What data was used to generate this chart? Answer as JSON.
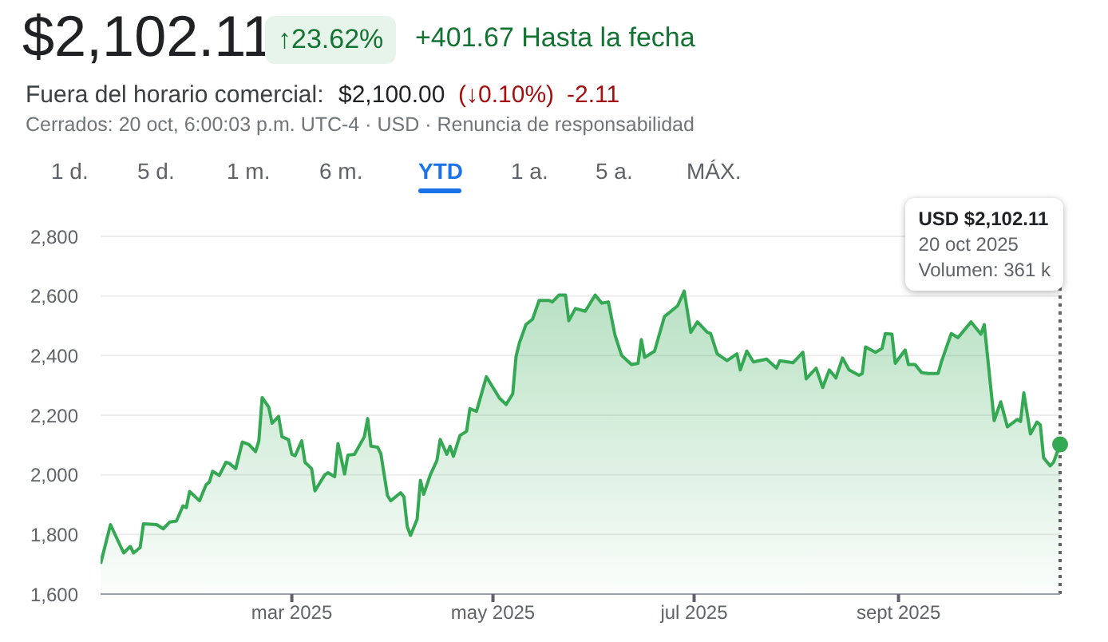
{
  "chart_data": {
    "type": "area",
    "title": "$2,102.11",
    "annotations": [
      "↑23.62%",
      "+401.67 Hasta la fecha",
      "Fuera del horario comercial:",
      "$2,100.00",
      "(↓0.10%)",
      "-2.11",
      "Cerrados: 20 oct, 6:00:03 p.m. UTC-4 · USD · Renuncia de responsabilidad",
      "1 d.",
      "5 d.",
      "1 m.",
      "6 m.",
      "YTD",
      "1 a.",
      "5 a.",
      "MÁX.",
      "USD $2,102.11\n20 oct 2025\nVolumen: 361 k"
    ],
    "x": [
      "2025-01-02",
      "2025-01-05",
      "2025-01-09",
      "2025-01-11",
      "2025-01-12",
      "2025-01-14",
      "2025-01-15",
      "2025-01-19",
      "2025-01-21",
      "2025-01-23",
      "2025-01-25",
      "2025-01-27",
      "2025-01-28",
      "2025-01-29",
      "2025-02-01",
      "2025-02-03",
      "2025-02-04",
      "2025-02-05",
      "2025-02-07",
      "2025-02-09",
      "2025-02-10",
      "2025-02-12",
      "2025-02-14",
      "2025-02-16",
      "2025-02-18",
      "2025-02-19",
      "2025-02-20",
      "2025-02-22",
      "2025-02-23",
      "2025-02-25",
      "2025-02-26",
      "2025-02-28",
      "2025-03-01",
      "2025-03-02",
      "2025-03-04",
      "2025-03-05",
      "2025-03-07",
      "2025-03-08",
      "2025-03-11",
      "2025-03-12",
      "2025-03-14",
      "2025-03-15",
      "2025-03-17",
      "2025-03-18",
      "2025-03-20",
      "2025-03-23",
      "2025-03-24",
      "2025-03-25",
      "2025-03-27",
      "2025-03-28",
      "2025-03-30",
      "2025-03-31",
      "2025-04-03",
      "2025-04-04",
      "2025-04-05",
      "2025-04-06",
      "2025-04-08",
      "2025-04-09",
      "2025-04-10",
      "2025-04-12",
      "2025-04-14",
      "2025-04-15",
      "2025-04-17",
      "2025-04-18",
      "2025-04-19",
      "2025-04-21",
      "2025-04-23",
      "2025-04-24",
      "2025-04-26",
      "2025-04-29",
      "2025-05-01",
      "2025-05-03",
      "2025-05-05",
      "2025-05-07",
      "2025-05-08",
      "2025-05-09",
      "2025-05-11",
      "2025-05-13",
      "2025-05-15",
      "2025-05-18",
      "2025-05-19",
      "2025-05-21",
      "2025-05-23",
      "2025-05-24",
      "2025-05-26",
      "2025-05-29",
      "2025-06-01",
      "2025-06-03",
      "2025-06-05",
      "2025-06-07",
      "2025-06-09",
      "2025-06-12",
      "2025-06-14",
      "2025-06-15",
      "2025-06-16",
      "2025-06-19",
      "2025-06-22",
      "2025-06-24",
      "2025-06-26",
      "2025-06-28",
      "2025-06-30",
      "2025-07-02",
      "2025-07-05",
      "2025-07-06",
      "2025-07-08",
      "2025-07-11",
      "2025-07-14",
      "2025-07-15",
      "2025-07-17",
      "2025-07-19",
      "2025-07-23",
      "2025-07-26",
      "2025-07-27",
      "2025-07-31",
      "2025-08-03",
      "2025-08-04",
      "2025-08-07",
      "2025-08-09",
      "2025-08-11",
      "2025-08-13",
      "2025-08-15",
      "2025-08-17",
      "2025-08-20",
      "2025-08-21",
      "2025-08-22",
      "2025-08-25",
      "2025-08-27",
      "2025-08-28",
      "2025-08-30",
      "2025-08-31",
      "2025-09-03",
      "2025-09-04",
      "2025-09-06",
      "2025-09-08",
      "2025-09-10",
      "2025-09-13",
      "2025-09-14",
      "2025-09-17",
      "2025-09-19",
      "2025-09-23",
      "2025-09-26",
      "2025-09-27",
      "2025-09-30",
      "2025-10-02",
      "2025-10-04",
      "2025-10-07",
      "2025-10-08",
      "2025-10-09",
      "2025-10-11",
      "2025-10-13",
      "2025-10-14",
      "2025-10-15",
      "2025-10-17",
      "2025-10-18",
      "2025-10-20"
    ],
    "series": [
      {
        "color": "#34a853",
        "values": [
          1702,
          1833,
          1738,
          1760,
          1738,
          1756,
          1836,
          1833,
          1819,
          1842,
          1845,
          1896,
          1890,
          1944,
          1913,
          1967,
          1976,
          2012,
          1998,
          2042,
          2039,
          2021,
          2110,
          2102,
          2078,
          2114,
          2259,
          2227,
          2173,
          2196,
          2128,
          2118,
          2069,
          2064,
          2114,
          2042,
          2021,
          1946,
          2000,
          2007,
          1994,
          2105,
          2003,
          2066,
          2069,
          2128,
          2189,
          2096,
          2093,
          2071,
          1931,
          1913,
          1940,
          1926,
          1827,
          1797,
          1851,
          1982,
          1935,
          2000,
          2048,
          2119,
          2069,
          2096,
          2062,
          2132,
          2146,
          2222,
          2213,
          2329,
          2293,
          2257,
          2236,
          2272,
          2397,
          2442,
          2504,
          2522,
          2585,
          2585,
          2580,
          2603,
          2603,
          2517,
          2558,
          2549,
          2603,
          2576,
          2580,
          2469,
          2401,
          2370,
          2374,
          2454,
          2394,
          2415,
          2531,
          2549,
          2567,
          2616,
          2478,
          2513,
          2478,
          2474,
          2406,
          2383,
          2406,
          2352,
          2415,
          2379,
          2388,
          2358,
          2383,
          2376,
          2411,
          2322,
          2358,
          2293,
          2352,
          2325,
          2392,
          2352,
          2334,
          2340,
          2429,
          2411,
          2424,
          2474,
          2472,
          2374,
          2419,
          2370,
          2370,
          2343,
          2340,
          2340,
          2379,
          2474,
          2460,
          2513,
          2472,
          2504,
          2182,
          2245,
          2161,
          2186,
          2179,
          2275,
          2137,
          2177,
          2168,
          2057,
          2030,
          2042,
          2102
        ]
      }
    ],
    "xlim": [
      "2025-01-02",
      "2025-10-20"
    ],
    "xticks": [
      {
        "value": "2025-03-01",
        "label": "mar 2025"
      },
      {
        "value": "2025-05-01",
        "label": "may 2025"
      },
      {
        "value": "2025-07-01",
        "label": "jul 2025"
      },
      {
        "value": "2025-09-01",
        "label": "sept 2025"
      }
    ],
    "ylim": [
      1600,
      2800
    ],
    "yticks": [
      {
        "value": 1600,
        "label": "1,600"
      },
      {
        "value": 1800,
        "label": "1,800"
      },
      {
        "value": 2000,
        "label": "2,000"
      },
      {
        "value": 2200,
        "label": "2,200"
      },
      {
        "value": 2400,
        "label": "2,400"
      },
      {
        "value": 2600,
        "label": "2,600"
      },
      {
        "value": 2800,
        "label": "2,800"
      }
    ],
    "ref_lines": [
      {
        "axis": "x",
        "value": "2025-10-20",
        "label": null,
        "color": "#5f6368",
        "line_style": "dotted"
      }
    ],
    "grid": "y",
    "marker": "none",
    "line_style": "solid"
  }
}
